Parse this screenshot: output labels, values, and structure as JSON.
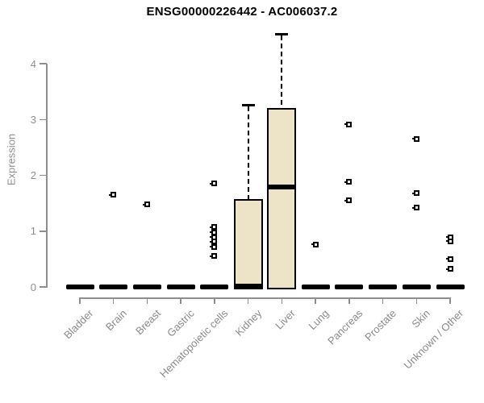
{
  "title": "ENSG00000226442 - AC006037.2",
  "chart_data": {
    "type": "boxplot",
    "title": "ENSG00000226442 - AC006037.2",
    "xlabel": "",
    "ylabel": "Expression",
    "ylim": [
      0,
      4.6
    ],
    "y_ticks": [
      0,
      1,
      2,
      3,
      4
    ],
    "grid": false,
    "legend": "none",
    "box_fill_color": "#EDE4C8",
    "box_border_color": "#000000",
    "axis_color": "#8E8E8E",
    "categories": [
      "Bladder",
      "Brain",
      "Breast",
      "Gastric",
      "Hematopoietic cells",
      "Kidney",
      "Liver",
      "Lung",
      "Pancreas",
      "Prostate",
      "Skin",
      "Unknown / Other"
    ],
    "boxes": [
      {
        "category": "Bladder",
        "min": 0,
        "q1": 0,
        "median": 0,
        "q3": 0,
        "max": 0,
        "outliers": []
      },
      {
        "category": "Brain",
        "min": 0,
        "q1": 0,
        "median": 0,
        "q3": 0,
        "max": 0,
        "outliers": [
          1.65
        ]
      },
      {
        "category": "Breast",
        "min": 0,
        "q1": 0,
        "median": 0,
        "q3": 0,
        "max": 0,
        "outliers": [
          1.48
        ]
      },
      {
        "category": "Gastric",
        "min": 0,
        "q1": 0,
        "median": 0,
        "q3": 0,
        "max": 0,
        "outliers": []
      },
      {
        "category": "Hematopoietic cells",
        "min": 0,
        "q1": 0,
        "median": 0,
        "q3": 0,
        "max": 0,
        "outliers": [
          1.85,
          1.07,
          0.98,
          0.89,
          0.81,
          0.72,
          0.55
        ]
      },
      {
        "category": "Kidney",
        "min": 0,
        "q1": 0,
        "median": 0.02,
        "q3": 1.57,
        "max": 3.26,
        "outliers": []
      },
      {
        "category": "Liver",
        "min": 0,
        "q1": 0,
        "median": 1.79,
        "q3": 3.2,
        "max": 4.53,
        "outliers": []
      },
      {
        "category": "Lung",
        "min": 0,
        "q1": 0,
        "median": 0,
        "q3": 0,
        "max": 0,
        "outliers": [
          0.76
        ]
      },
      {
        "category": "Pancreas",
        "min": 0,
        "q1": 0,
        "median": 0,
        "q3": 0,
        "max": 0,
        "outliers": [
          2.91,
          1.88,
          1.55
        ]
      },
      {
        "category": "Prostate",
        "min": 0,
        "q1": 0,
        "median": 0,
        "q3": 0,
        "max": 0,
        "outliers": []
      },
      {
        "category": "Skin",
        "min": 0,
        "q1": 0,
        "median": 0,
        "q3": 0,
        "max": 0,
        "outliers": [
          2.65,
          1.68,
          1.42
        ]
      },
      {
        "category": "Unknown / Other",
        "min": 0,
        "q1": 0,
        "median": 0,
        "q3": 0,
        "max": 0,
        "outliers": [
          0.89,
          0.82,
          0.5,
          0.32
        ]
      }
    ]
  }
}
